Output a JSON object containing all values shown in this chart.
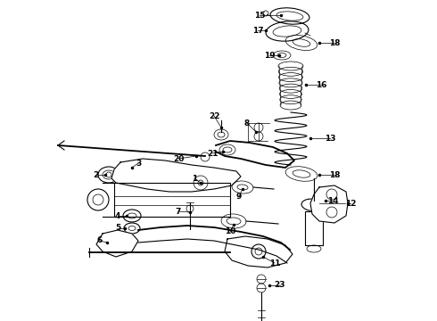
{
  "background_color": "#ffffff",
  "line_color": "#000000",
  "dpi": 100,
  "figw": 4.9,
  "figh": 3.6,
  "font_size": 6.5,
  "font_size_small": 5.5,
  "lw_thin": 0.5,
  "lw_med": 0.8,
  "lw_thick": 1.3,
  "lw_xthick": 2.0
}
